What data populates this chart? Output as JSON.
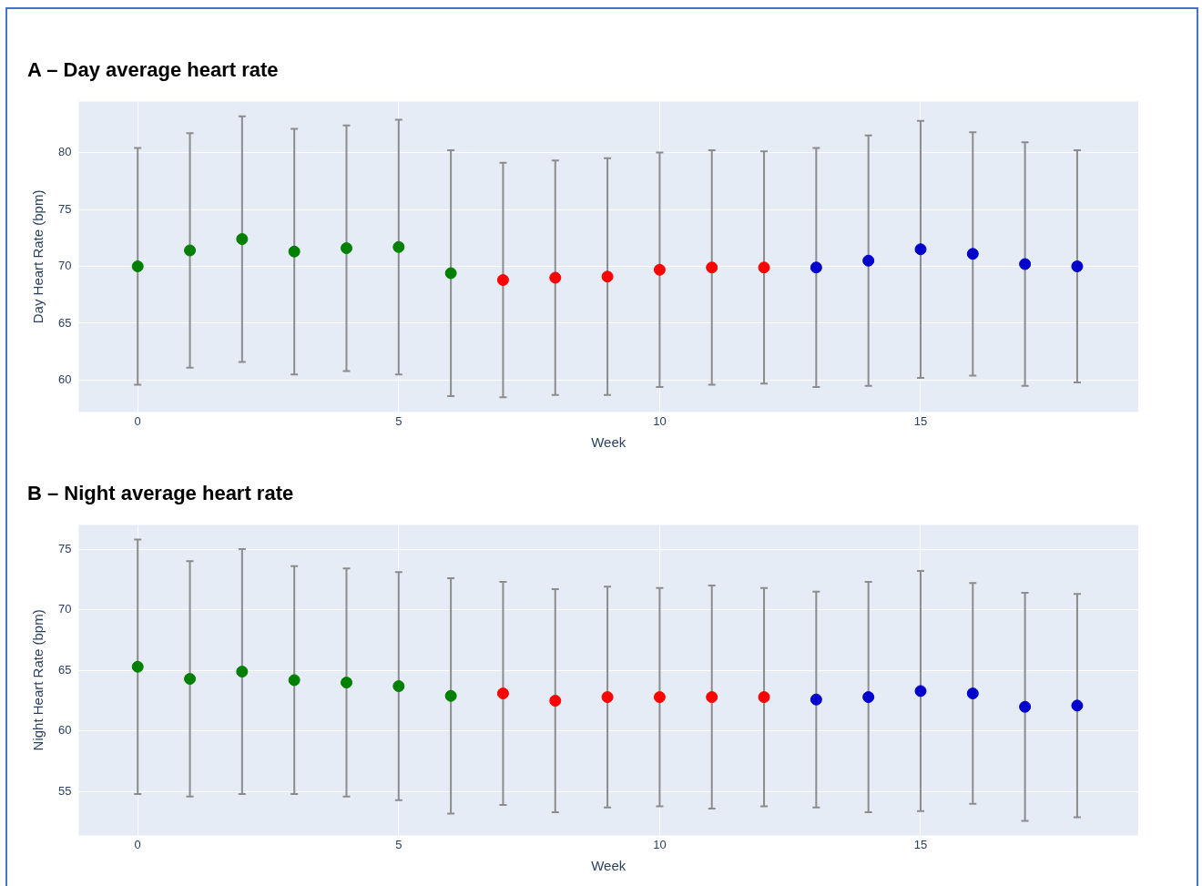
{
  "chart_data": [
    {
      "type": "scatter",
      "title": "A – Day average heart rate",
      "xlabel": "Week",
      "ylabel": "Day Heart Rate (bpm)",
      "x": [
        0,
        1,
        2,
        3,
        4,
        5,
        6,
        7,
        8,
        9,
        10,
        11,
        12,
        13,
        14,
        15,
        16,
        17,
        18
      ],
      "values": [
        70.0,
        71.4,
        72.4,
        71.3,
        71.6,
        71.7,
        69.4,
        68.8,
        69.0,
        69.1,
        69.7,
        69.9,
        69.9,
        69.9,
        70.5,
        71.5,
        71.1,
        70.2,
        70.0
      ],
      "errors": [
        10.4,
        10.3,
        10.8,
        10.8,
        10.8,
        11.2,
        10.8,
        10.3,
        10.3,
        10.4,
        10.3,
        10.3,
        10.2,
        10.5,
        11.0,
        11.3,
        10.7,
        10.7,
        10.2
      ],
      "colors": [
        "#008000",
        "#008000",
        "#008000",
        "#008000",
        "#008000",
        "#008000",
        "#008000",
        "#ff0000",
        "#ff0000",
        "#ff0000",
        "#ff0000",
        "#ff0000",
        "#ff0000",
        "#0000cd",
        "#0000cd",
        "#0000cd",
        "#0000cd",
        "#0000cd",
        "#0000cd"
      ],
      "xlim": [
        -1.13,
        19.17
      ],
      "ylim": [
        57.2,
        84.5
      ],
      "xticks": [
        0,
        5,
        10,
        15
      ],
      "yticks": [
        60,
        65,
        70,
        75,
        80
      ],
      "grid": true,
      "marker": "circle"
    },
    {
      "type": "scatter",
      "title": "B – Night average heart rate",
      "xlabel": "Week",
      "ylabel": "Night Heart Rate (bpm)",
      "x": [
        0,
        1,
        2,
        3,
        4,
        5,
        6,
        7,
        8,
        9,
        10,
        11,
        12,
        13,
        14,
        15,
        16,
        17,
        18
      ],
      "values": [
        65.3,
        64.3,
        64.9,
        64.2,
        64.0,
        63.7,
        62.9,
        63.1,
        62.5,
        62.8,
        62.8,
        62.8,
        62.8,
        62.6,
        62.8,
        63.3,
        63.1,
        62.0,
        62.1
      ],
      "errors": [
        10.5,
        9.7,
        10.1,
        9.4,
        9.4,
        9.4,
        9.7,
        9.2,
        9.2,
        9.1,
        9.0,
        9.2,
        9.0,
        8.9,
        9.5,
        9.9,
        9.1,
        9.4,
        9.2
      ],
      "colors": [
        "#008000",
        "#008000",
        "#008000",
        "#008000",
        "#008000",
        "#008000",
        "#008000",
        "#ff0000",
        "#ff0000",
        "#ff0000",
        "#ff0000",
        "#ff0000",
        "#ff0000",
        "#0000cd",
        "#0000cd",
        "#0000cd",
        "#0000cd",
        "#0000cd",
        "#0000cd"
      ],
      "xlim": [
        -1.13,
        19.17
      ],
      "ylim": [
        51.4,
        77.0
      ],
      "xticks": [
        0,
        5,
        10,
        15
      ],
      "yticks": [
        55,
        60,
        65,
        70,
        75
      ],
      "grid": true,
      "marker": "circle"
    }
  ]
}
